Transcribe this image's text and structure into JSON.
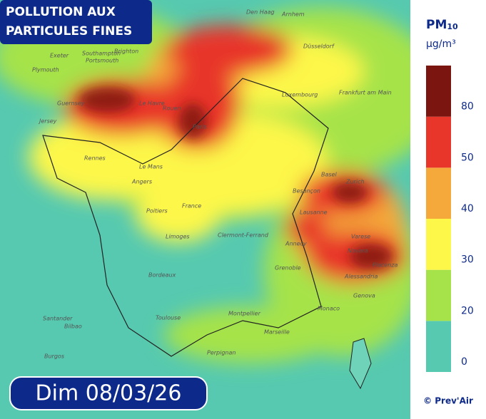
{
  "header": {
    "title_lines": [
      "POLLUTION AUX",
      "PARTICULES FINES"
    ],
    "date": "Dim 08/03/26"
  },
  "legend": {
    "pollutant": "PM",
    "pollutant_sub": "10",
    "unit": "µg/m³",
    "bands": [
      {
        "label": "0",
        "color": "#56c9b0"
      },
      {
        "label": "20",
        "color": "#a6e34a"
      },
      {
        "label": "30",
        "color": "#fdf74a"
      },
      {
        "label": "40",
        "color": "#f4a93a"
      },
      {
        "label": "50",
        "color": "#e8362a"
      },
      {
        "label": "80",
        "color": "#7a1510"
      }
    ]
  },
  "credit": "© Prev'Air",
  "places": [
    "Den Haag",
    "Arnhem",
    "Düsseldorf",
    "Brighton",
    "Southampton",
    "Portsmouth",
    "Exeter",
    "Plymouth",
    "Guernsey",
    "Jersey",
    "Le Havre",
    "Rouen",
    "Paris",
    "Rennes",
    "Le Mans",
    "Angers",
    "Poitiers",
    "France",
    "Limoges",
    "Clermont-Ferrand",
    "Bordeaux",
    "Toulouse",
    "Montpellier",
    "Marseille",
    "Grenoble",
    "Annecy",
    "Lausanne",
    "Besançon",
    "Basel",
    "Zurich",
    "Luxembourg",
    "Frankfurt am Main",
    "Novara",
    "Varese",
    "Piacenza",
    "Alessandria",
    "Genova",
    "Monaco",
    "Santander",
    "Bilbao",
    "Burgos",
    "Perpignan"
  ]
}
